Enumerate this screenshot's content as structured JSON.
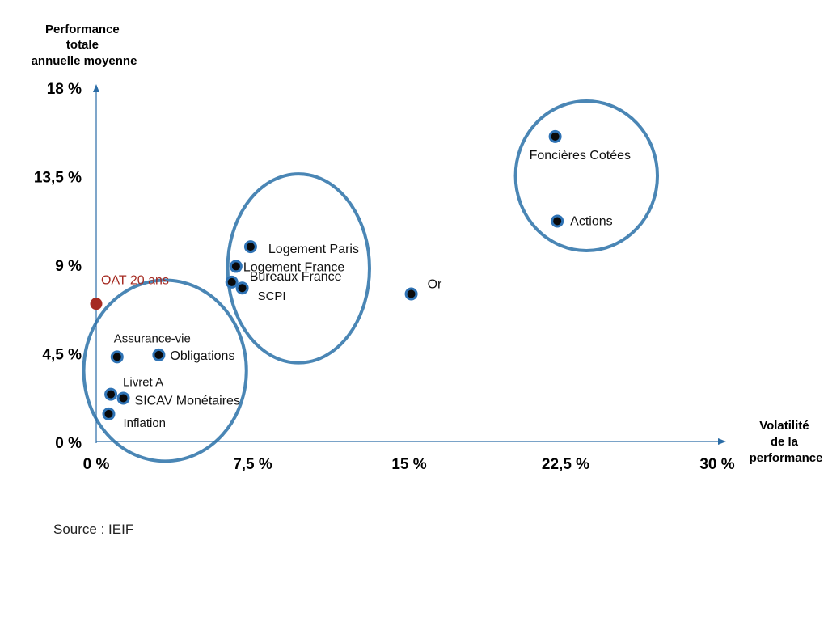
{
  "chart_data": {
    "type": "scatter",
    "title": "",
    "ylabel": [
      "Performance",
      "totale",
      "annuelle moyenne"
    ],
    "xlabel": [
      "Volatilité",
      "de la",
      "performance"
    ],
    "xlim": [
      0,
      30
    ],
    "ylim": [
      0,
      18
    ],
    "x_ticks": [
      "0 %",
      "7,5 %",
      "15 %",
      "22,5 %",
      "30 %"
    ],
    "y_ticks": [
      "0 %",
      "4,5 %",
      "9 %",
      "13,5 %",
      "18 %"
    ],
    "points": [
      {
        "name": "Foncières Cotées",
        "x": 22.0,
        "y": 15.5
      },
      {
        "name": "Actions",
        "x": 22.1,
        "y": 11.2
      },
      {
        "name": "Logement Paris",
        "x": 7.4,
        "y": 9.9
      },
      {
        "name": "Logement France",
        "x": 6.7,
        "y": 8.9
      },
      {
        "name": "Bureaux France",
        "x": 6.5,
        "y": 8.1
      },
      {
        "name": "SCPI",
        "x": 7.0,
        "y": 7.8
      },
      {
        "name": "Or",
        "x": 15.1,
        "y": 7.5
      },
      {
        "name": "Assurance-vie",
        "x": 1.0,
        "y": 4.3
      },
      {
        "name": "Obligations",
        "x": 3.0,
        "y": 4.4
      },
      {
        "name": "Livret A",
        "x": 0.7,
        "y": 2.4
      },
      {
        "name": "SICAV Monétaires",
        "x": 1.3,
        "y": 2.2
      },
      {
        "name": "Inflation",
        "x": 0.6,
        "y": 1.4
      }
    ],
    "reference": {
      "name": "OAT 20 ans",
      "x": 0,
      "y": 7.0,
      "color": "#a52a21"
    },
    "clusters": [
      {
        "name": "low-risk",
        "center": [
          3.3,
          3.6
        ],
        "radius": [
          3.9,
          4.6
        ]
      },
      {
        "name": "real-estate",
        "center": [
          9.7,
          8.8
        ],
        "radius": [
          3.4,
          4.8
        ]
      },
      {
        "name": "equities",
        "center": [
          23.5,
          13.5
        ],
        "radius": [
          3.4,
          3.8
        ]
      }
    ],
    "colors": {
      "axis": "#2a6ca6",
      "circle": "#4a86b5",
      "point_ring": "#2f73b5",
      "point_core": "#0a0a0a"
    }
  },
  "source": "Source : IEIF"
}
